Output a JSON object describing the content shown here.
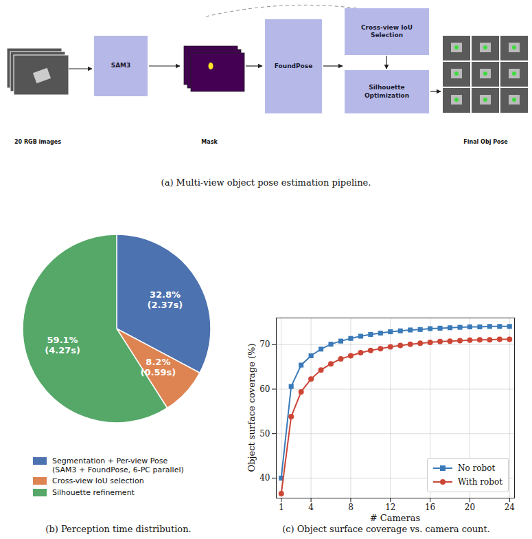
{
  "diagram": {
    "caption": "(a) Multi-view object pose estimation pipeline.",
    "nodes": [
      {
        "label": "20 RGB images"
      },
      {
        "label": "SAM3"
      },
      {
        "label": "Mask"
      },
      {
        "label": "FoundPose"
      },
      {
        "label": "Cross-view IoU Selection"
      },
      {
        "label": "Silhouette Optimization"
      },
      {
        "label": "Final Obj Pose"
      }
    ]
  },
  "chart_data": [
    {
      "type": "pie",
      "caption": "(b) Perception time distribution.",
      "categories": [
        "Segmentation + Per-view Pose (SAM3 + FoundPose, 6-PC parallel)",
        "Cross-view IoU selection",
        "Silhouette refinement"
      ],
      "values": [
        32.8,
        8.2,
        59.1
      ],
      "value_labels": [
        "32.8%\n(2.37s)",
        "8.2%\n(0.59s)",
        "59.1%\n(4.27s)"
      ],
      "colors": [
        "#4c72b0",
        "#dd8452",
        "#55a868"
      ],
      "data_labels": true,
      "legend": "bottom"
    },
    {
      "type": "line",
      "caption": "(c) Object surface coverage vs. camera count.",
      "xlabel": "# Cameras",
      "ylabel": "Object surface coverage (%)",
      "x": [
        1,
        2,
        3,
        4,
        5,
        6,
        7,
        8,
        9,
        10,
        11,
        12,
        13,
        14,
        15,
        16,
        17,
        18,
        19,
        20,
        21,
        22,
        23,
        24
      ],
      "series": [
        {
          "name": "No robot",
          "color": "#3a7ab8",
          "marker": "square",
          "values": [
            40.0,
            60.6,
            65.4,
            67.5,
            69.0,
            70.1,
            70.8,
            71.4,
            71.9,
            72.3,
            72.6,
            72.9,
            73.1,
            73.3,
            73.4,
            73.6,
            73.7,
            73.8,
            73.9,
            74.0,
            74.0,
            74.1,
            74.1,
            74.1
          ]
        },
        {
          "name": "With robot",
          "color": "#cc4535",
          "marker": "circle",
          "values": [
            36.5,
            53.8,
            59.4,
            62.3,
            64.3,
            65.7,
            66.8,
            67.5,
            68.2,
            68.7,
            69.1,
            69.5,
            69.8,
            70.1,
            70.3,
            70.5,
            70.7,
            70.8,
            70.9,
            71.0,
            71.1,
            71.1,
            71.2,
            71.2
          ]
        }
      ],
      "xlim": [
        0.5,
        24.5
      ],
      "ylim": [
        35.5,
        76
      ],
      "xticks": [
        1,
        4,
        8,
        12,
        16,
        20,
        24
      ],
      "yticks": [
        40,
        50,
        60,
        70
      ],
      "grid": true,
      "legend": "lower right"
    }
  ]
}
